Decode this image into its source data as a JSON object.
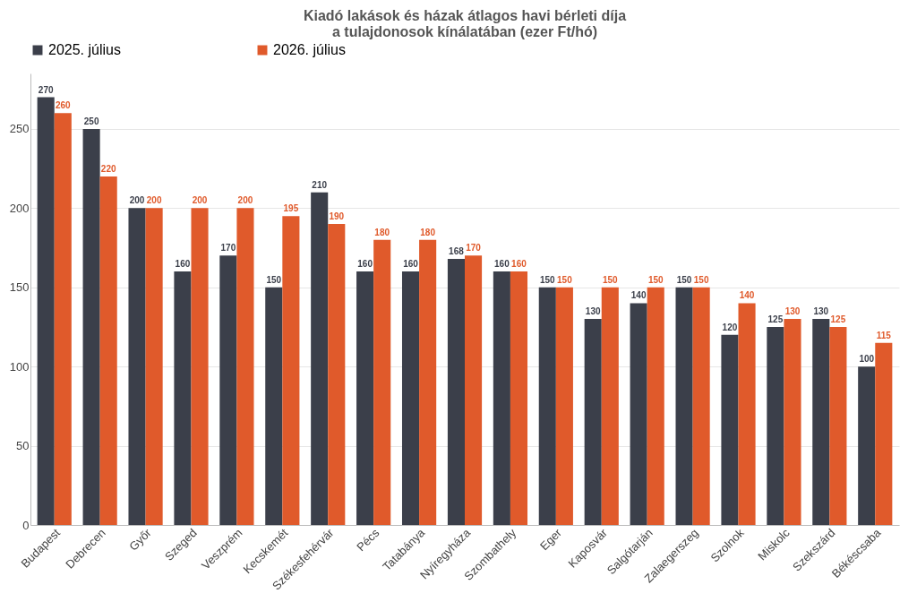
{
  "chart_data": {
    "type": "bar",
    "title": [
      "Kiadó lakások és házak átlagos havi bérleti díja",
      "a tulajdonosok kínálatában (ezer Ft/hó)"
    ],
    "categories": [
      "Budapest",
      "Debrecen",
      "Győr",
      "Szeged",
      "Veszprém",
      "Kecskemét",
      "Székesfehérvár",
      "Pécs",
      "Tatabánya",
      "Nyíregyháza",
      "Szombathely",
      "Eger",
      "Kaposvár",
      "Salgótarján",
      "Zalaegerszeg",
      "Szolnok",
      "Miskolc",
      "Szekszárd",
      "Békéscsaba"
    ],
    "series": [
      {
        "name": "2025. július",
        "color": "#3b3f4a",
        "values": [
          270,
          250,
          200,
          160,
          170,
          150,
          210,
          160,
          160,
          168,
          160,
          150,
          130,
          140,
          150,
          120,
          125,
          130,
          100
        ]
      },
      {
        "name": "2026. július",
        "color": "#e05a2b",
        "values": [
          260,
          220,
          200,
          200,
          200,
          195,
          190,
          180,
          180,
          170,
          160,
          150,
          150,
          150,
          150,
          140,
          130,
          125,
          115
        ]
      }
    ],
    "ylim": [
      0,
      285
    ],
    "yticks": [
      0,
      50,
      100,
      150,
      200,
      250
    ],
    "grid": "y",
    "legend": "top",
    "data_labels": true
  }
}
